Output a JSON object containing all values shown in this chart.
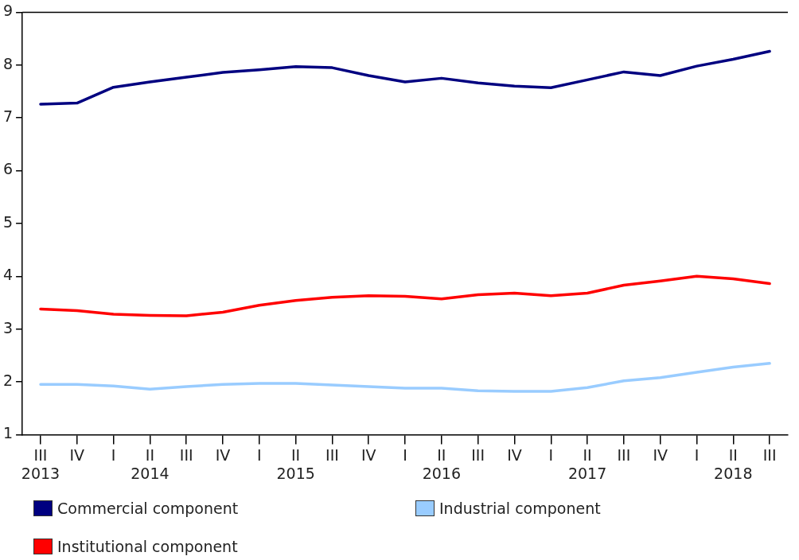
{
  "chart_data": {
    "type": "line",
    "categories": [
      "III\n2013",
      "IV",
      "I",
      "II\n2014",
      "III",
      "IV",
      "I",
      "II\n2015",
      "III",
      "IV",
      "I",
      "II\n2016",
      "III",
      "IV",
      "I",
      "II\n2017",
      "III",
      "IV",
      "I",
      "II\n2018",
      "III"
    ],
    "series": [
      {
        "name": "Commercial component",
        "color": "#000080",
        "values": [
          7.26,
          7.28,
          7.58,
          7.68,
          7.77,
          7.86,
          7.91,
          7.97,
          7.95,
          7.8,
          7.68,
          7.75,
          7.66,
          7.6,
          7.57,
          7.72,
          7.87,
          7.8,
          7.98,
          8.11,
          8.26
        ]
      },
      {
        "name": "Industrial component",
        "color": "#99ccff",
        "values": [
          1.95,
          1.95,
          1.92,
          1.86,
          1.91,
          1.95,
          1.97,
          1.97,
          1.94,
          1.91,
          1.88,
          1.88,
          1.83,
          1.82,
          1.82,
          1.89,
          2.02,
          2.08,
          2.18,
          2.28,
          2.35
        ]
      },
      {
        "name": "Institutional component",
        "color": "#ff0000",
        "values": [
          3.38,
          3.35,
          3.28,
          3.26,
          3.25,
          3.32,
          3.45,
          3.54,
          3.6,
          3.63,
          3.62,
          3.57,
          3.65,
          3.68,
          3.63,
          3.68,
          3.83,
          3.91,
          4.0,
          3.95,
          3.86
        ]
      }
    ],
    "ylim": [
      1,
      9
    ],
    "yticks": [
      1,
      2,
      3,
      4,
      5,
      6,
      7,
      8,
      9
    ],
    "grid": false,
    "legend": "bottom",
    "marker": "none",
    "line_style": "solid"
  }
}
